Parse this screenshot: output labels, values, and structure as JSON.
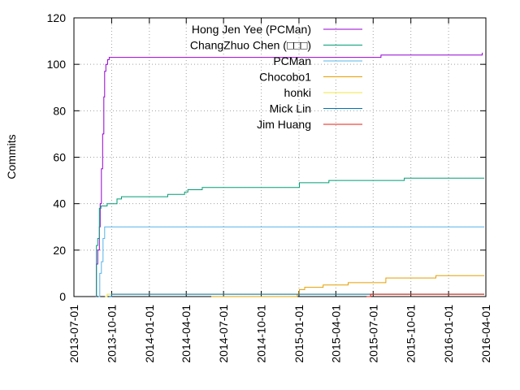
{
  "chart_data": {
    "type": "line",
    "title": "",
    "xlabel": "",
    "ylabel": "Commits",
    "x_type": "date",
    "xlim": [
      "2013-07-01",
      "2016-04-01"
    ],
    "ylim": [
      0,
      120
    ],
    "grid": true,
    "legend_position": "top-right",
    "y_ticks": [
      0,
      20,
      40,
      60,
      80,
      100,
      120
    ],
    "x_ticks": [
      "2013-07-01",
      "2013-10-01",
      "2014-01-01",
      "2014-04-01",
      "2014-07-01",
      "2014-10-01",
      "2015-01-01",
      "2015-04-01",
      "2015-07-01",
      "2015-10-01",
      "2016-01-01",
      "2016-04-01"
    ],
    "series": [
      {
        "name": "Hong Jen Yee (PCMan)",
        "color": "#9400d3",
        "points": [
          [
            "2013-08-23",
            0
          ],
          [
            "2013-08-25",
            14
          ],
          [
            "2013-08-28",
            20
          ],
          [
            "2013-09-01",
            30
          ],
          [
            "2013-09-03",
            40
          ],
          [
            "2013-09-06",
            55
          ],
          [
            "2013-09-09",
            70
          ],
          [
            "2013-09-12",
            86
          ],
          [
            "2013-09-14",
            97
          ],
          [
            "2013-09-17",
            100
          ],
          [
            "2013-09-21",
            102
          ],
          [
            "2013-09-25",
            103
          ],
          [
            "2015-06-15",
            103
          ],
          [
            "2015-07-20",
            104
          ],
          [
            "2016-03-22",
            104
          ],
          [
            "2016-03-23",
            105
          ]
        ]
      },
      {
        "name": "ChangZhuo Chen (□□□)",
        "color": "#009e73",
        "points": [
          [
            "2013-08-24",
            0
          ],
          [
            "2013-08-25",
            22
          ],
          [
            "2013-08-28",
            25
          ],
          [
            "2013-09-01",
            38
          ],
          [
            "2013-09-05",
            39
          ],
          [
            "2013-09-20",
            40
          ],
          [
            "2013-10-12",
            40
          ],
          [
            "2013-10-14",
            42
          ],
          [
            "2013-10-25",
            43
          ],
          [
            "2014-02-15",
            44
          ],
          [
            "2014-03-28",
            45
          ],
          [
            "2014-04-05",
            46
          ],
          [
            "2014-05-10",
            47
          ],
          [
            "2014-12-28",
            47
          ],
          [
            "2015-01-02",
            49
          ],
          [
            "2015-03-15",
            50
          ],
          [
            "2015-09-15",
            51
          ],
          [
            "2016-03-28",
            51
          ]
        ]
      },
      {
        "name": "PCMan",
        "color": "#56b4e9",
        "points": [
          [
            "2013-08-30",
            0
          ],
          [
            "2013-09-02",
            10
          ],
          [
            "2013-09-06",
            15
          ],
          [
            "2013-09-10",
            25
          ],
          [
            "2013-09-14",
            30
          ],
          [
            "2016-03-28",
            30
          ]
        ]
      },
      {
        "name": "Chocobo1",
        "color": "#e69f00",
        "points": [
          [
            "2014-06-01",
            0
          ],
          [
            "2014-12-28",
            1
          ],
          [
            "2015-01-02",
            3
          ],
          [
            "2015-01-15",
            4
          ],
          [
            "2015-03-01",
            5
          ],
          [
            "2015-05-01",
            6
          ],
          [
            "2015-07-15",
            6
          ],
          [
            "2015-08-01",
            8
          ],
          [
            "2015-12-01",
            9
          ],
          [
            "2016-03-28",
            9
          ]
        ]
      },
      {
        "name": "honki",
        "color": "#f0e442",
        "points": [
          [
            "2013-09-15",
            0
          ],
          [
            "2013-09-20",
            1
          ],
          [
            "2016-03-28",
            1
          ]
        ]
      },
      {
        "name": "Mick Lin",
        "color": "#0072b2",
        "points": [
          [
            "2013-09-25",
            0
          ],
          [
            "2013-10-01",
            1
          ],
          [
            "2016-03-28",
            1
          ]
        ]
      },
      {
        "name": "Jim Huang",
        "color": "#e51e10",
        "points": [
          [
            "2015-06-15",
            0
          ],
          [
            "2015-06-25",
            1
          ],
          [
            "2016-03-28",
            1
          ]
        ]
      }
    ]
  }
}
